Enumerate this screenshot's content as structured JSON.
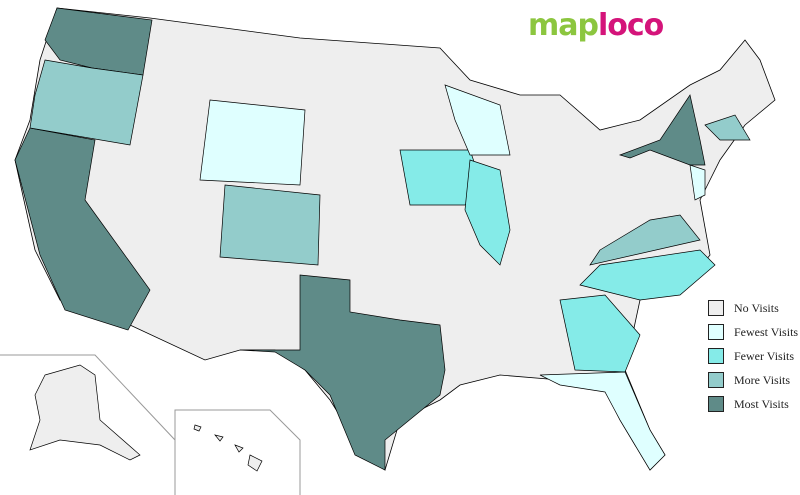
{
  "logo": {
    "part1": "map",
    "part2": "loco"
  },
  "colors": {
    "none": "#eeeeee",
    "fewest": "#dfffff",
    "fewer": "#85ebe8",
    "more": "#93cccb",
    "most": "#5f8b88"
  },
  "legend": [
    {
      "key": "none",
      "label": "No Visits"
    },
    {
      "key": "fewest",
      "label": "Fewest Visits"
    },
    {
      "key": "fewer",
      "label": "Fewer Visits"
    },
    {
      "key": "more",
      "label": "More Visits"
    },
    {
      "key": "most",
      "label": "Most Visits"
    }
  ],
  "states": {
    "WA": "most",
    "CA": "most",
    "TX": "most",
    "NY": "most",
    "OR": "more",
    "CO": "more",
    "MA": "more",
    "VA": "more",
    "IA": "fewer",
    "IL": "fewer",
    "NC": "fewer",
    "GA": "fewer",
    "WY": "fewest",
    "WI": "fewest",
    "NJ": "fewest",
    "FL": "fewest"
  }
}
